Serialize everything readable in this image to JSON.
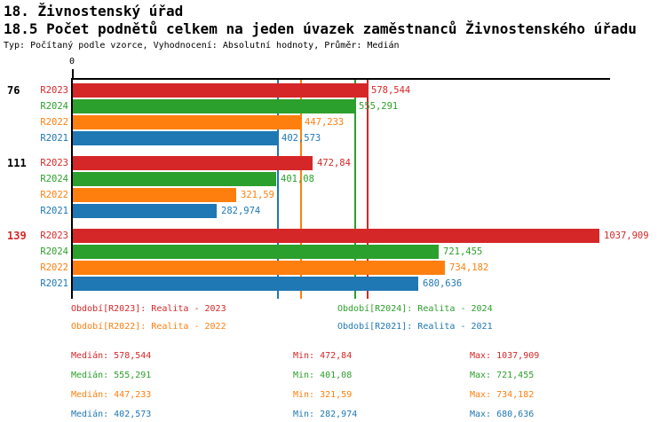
{
  "header": {
    "title1": "18. Živnostenský úřad",
    "title2": "18.5 Počet podnětů celkem na jeden úvazek zaměstnanců Živnostenského úřadu",
    "subtitle": "Typ: Počítaný podle vzorce, Vyhodnocení: Absolutní hodnoty, Průměr: Medián"
  },
  "colors": {
    "R2023": "#d62728",
    "R2024": "#2ca02c",
    "R2022": "#ff7f0e",
    "R2021": "#1f77b4",
    "axis": "#000000"
  },
  "chart_data": {
    "type": "bar",
    "orientation": "horizontal",
    "x_axis": {
      "zero_label": "0",
      "min": 0,
      "data_max": 1037.909,
      "gridlines": false
    },
    "series_order": [
      "R2023",
      "R2024",
      "R2022",
      "R2021"
    ],
    "groups": [
      {
        "label": "76",
        "label_color": "#000000",
        "values": [
          578.544,
          555.291,
          447.233,
          402.573
        ],
        "value_labels": [
          "578,544",
          "555,291",
          "447,233",
          "402,573"
        ]
      },
      {
        "label": "111",
        "label_color": "#000000",
        "values": [
          472.84,
          401.08,
          321.59,
          282.974
        ],
        "value_labels": [
          "472,84",
          "401,08",
          "321,59",
          "282,974"
        ]
      },
      {
        "label": "139",
        "label_color": "#d62728",
        "values": [
          1037.909,
          721.455,
          734.182,
          680.636
        ],
        "value_labels": [
          "1037,909",
          "721,455",
          "734,182",
          "680,636"
        ]
      }
    ],
    "median_lines": [
      {
        "series": "R2021",
        "value": 402.573
      },
      {
        "series": "R2022",
        "value": 447.233
      },
      {
        "series": "R2024",
        "value": 555.291
      },
      {
        "series": "R2023",
        "value": 578.544
      }
    ]
  },
  "legend": {
    "items": [
      {
        "series": "R2023",
        "text": "Období[R2023]: Realita - 2023"
      },
      {
        "series": "R2024",
        "text": "Období[R2024]: Realita - 2024"
      },
      {
        "series": "R2022",
        "text": "Období[R2022]: Realita - 2022"
      },
      {
        "series": "R2021",
        "text": "Období[R2021]: Realita - 2021"
      }
    ]
  },
  "stats": {
    "rows": [
      {
        "series": "R2023",
        "median": "Medián: 578,544",
        "min": "Min: 472,84",
        "max": "Max: 1037,909"
      },
      {
        "series": "R2024",
        "median": "Medián: 555,291",
        "min": "Min: 401,08",
        "max": "Max: 721,455"
      },
      {
        "series": "R2022",
        "median": "Medián: 447,233",
        "min": "Min: 321,59",
        "max": "Max: 734,182"
      },
      {
        "series": "R2021",
        "median": "Medián: 402,573",
        "min": "Min: 282,974",
        "max": "Max: 680,636"
      }
    ]
  }
}
